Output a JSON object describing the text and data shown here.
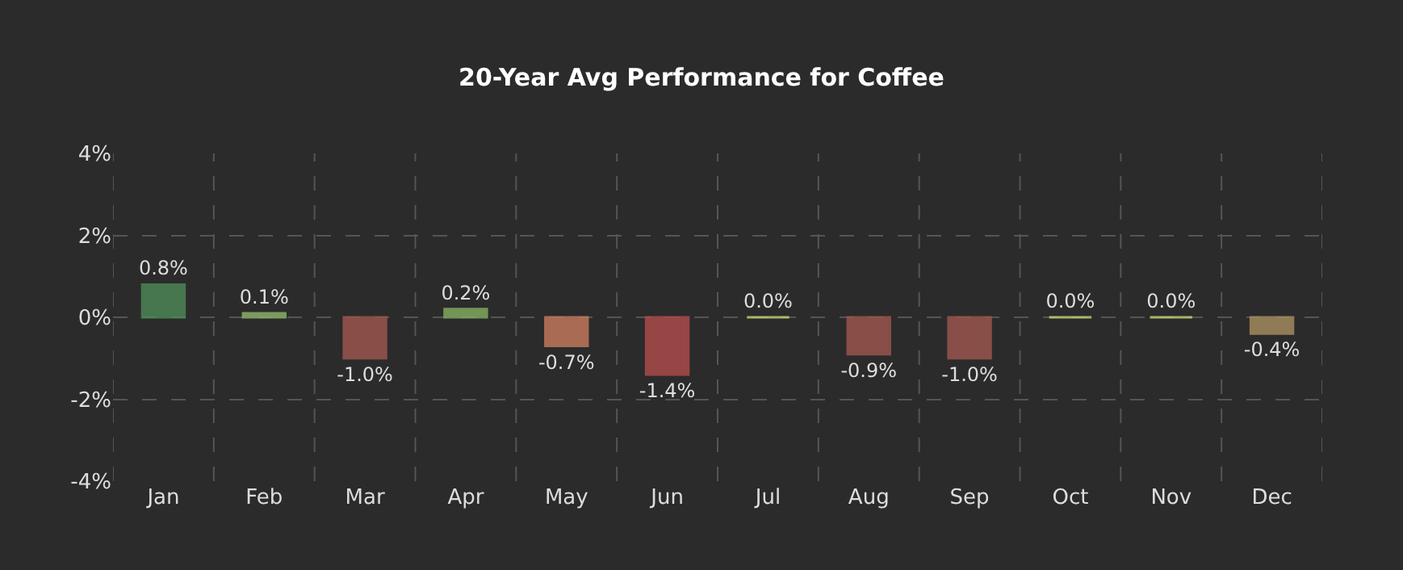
{
  "chart_data": {
    "type": "bar",
    "title": "20-Year Avg Performance for Coffee",
    "categories": [
      "Jan",
      "Feb",
      "Mar",
      "Apr",
      "May",
      "Jun",
      "Jul",
      "Aug",
      "Sep",
      "Oct",
      "Nov",
      "Dec"
    ],
    "values": [
      0.8,
      0.1,
      -1.0,
      0.2,
      -0.7,
      -1.4,
      0.0,
      -0.9,
      -1.0,
      0.0,
      0.0,
      -0.4
    ],
    "colors": [
      "#4f8a58",
      "#8fb86a",
      "#a0574e",
      "#86b060",
      "#c97b5c",
      "#b24c4c",
      "#c6d870",
      "#a0574e",
      "#a0574e",
      "#c6d870",
      "#c6d870",
      "#a89060"
    ],
    "value_labels": [
      "0.8%",
      "0.1%",
      "-1.0%",
      "0.2%",
      "-0.7%",
      "-1.4%",
      "0.0%",
      "-0.9%",
      "-1.0%",
      "0.0%",
      "0.0%",
      "-0.4%"
    ],
    "ylim": [
      -4,
      4
    ],
    "yticks": [
      {
        "value": -4,
        "label": "-4%"
      },
      {
        "value": -2,
        "label": "-2%"
      },
      {
        "value": 0,
        "label": "0%"
      },
      {
        "value": 2,
        "label": "2%"
      },
      {
        "value": 4,
        "label": "4%"
      }
    ],
    "grid": true
  }
}
